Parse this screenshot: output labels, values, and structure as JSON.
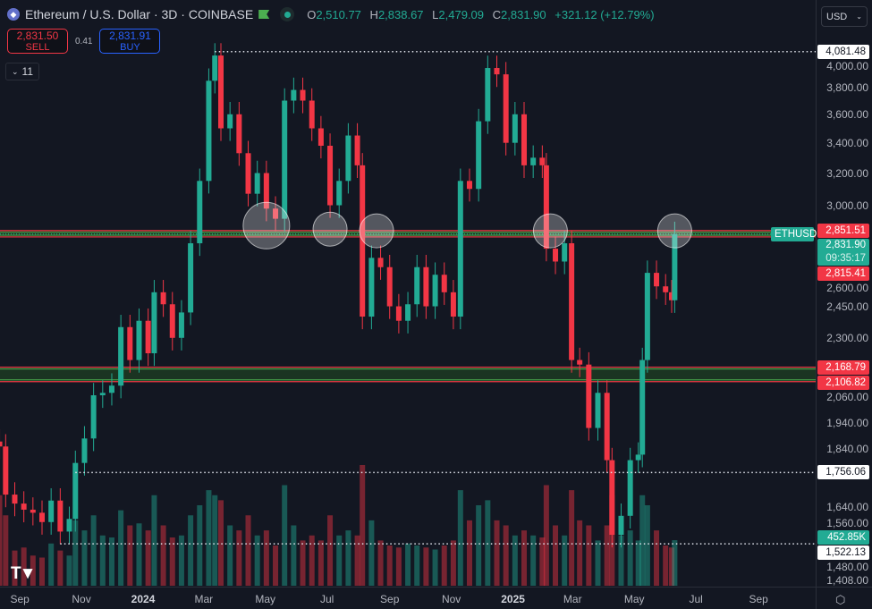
{
  "header": {
    "title": "Ethereum / U.S. Dollar · 3D · COINBASE",
    "open_label": "O",
    "open": "2,510.77",
    "high_label": "H",
    "high": "2,838.67",
    "low_label": "L",
    "low": "2,479.09",
    "close_label": "C",
    "close": "2,831.90",
    "change": "+321.12 (+12.79%)"
  },
  "trade": {
    "sell_price": "2,831.50",
    "sell_label": "SELL",
    "spread": "0.41",
    "buy_price": "2,831.91",
    "buy_label": "BUY"
  },
  "indicators_toggle": {
    "count": "11"
  },
  "currency": {
    "selected": "USD"
  },
  "colors": {
    "background": "#131722",
    "up": "#22ab94",
    "down": "#f23645",
    "zone": "#1d3a22"
  },
  "chart_data": {
    "type": "candlestick",
    "symbol": "ETHUSD",
    "interval": "3D",
    "scale": "log",
    "ylim": [
      1380,
      4150
    ],
    "y_ticks": [
      "4,000.00",
      "3,800.00",
      "3,600.00",
      "3,400.00",
      "3,200.00",
      "3,000.00",
      "2,600.00",
      "2,450.00",
      "2,300.00",
      "2,060.00",
      "1,940.00",
      "1,840.00",
      "1,640.00",
      "1,560.00",
      "1,480.00",
      "1,408.00"
    ],
    "x_ticks": [
      {
        "label": "Sep",
        "date": "2023-09-01"
      },
      {
        "label": "Nov",
        "date": "2023-11-01"
      },
      {
        "label": "2024",
        "date": "2024-01-01",
        "bold": true
      },
      {
        "label": "Mar",
        "date": "2024-03-01"
      },
      {
        "label": "May",
        "date": "2024-05-01"
      },
      {
        "label": "Jul",
        "date": "2024-07-01"
      },
      {
        "label": "Sep",
        "date": "2024-09-01"
      },
      {
        "label": "Nov",
        "date": "2024-11-01"
      },
      {
        "label": "2025",
        "date": "2025-01-01",
        "bold": true
      },
      {
        "label": "Mar",
        "date": "2025-03-01"
      },
      {
        "label": "May",
        "date": "2025-05-01"
      },
      {
        "label": "Jul",
        "date": "2025-07-01"
      },
      {
        "label": "Sep",
        "date": "2025-09-01"
      }
    ],
    "closes": [
      [
        "2023-08-12",
        1850,
        900
      ],
      [
        "2023-08-18",
        1680,
        700
      ],
      [
        "2023-08-27",
        1650,
        350
      ],
      [
        "2023-09-05",
        1630,
        380
      ],
      [
        "2023-09-14",
        1620,
        300
      ],
      [
        "2023-09-23",
        1590,
        280
      ],
      [
        "2023-10-02",
        1660,
        420
      ],
      [
        "2023-10-11",
        1560,
        350
      ],
      [
        "2023-10-20",
        1600,
        300
      ],
      [
        "2023-10-26",
        1790,
        650
      ],
      [
        "2023-11-04",
        1880,
        550
      ],
      [
        "2023-11-13",
        2050,
        700
      ],
      [
        "2023-11-22",
        2060,
        500
      ],
      [
        "2023-12-01",
        2090,
        480
      ],
      [
        "2023-12-10",
        2350,
        750
      ],
      [
        "2023-12-19",
        2200,
        600
      ],
      [
        "2023-12-28",
        2380,
        620
      ],
      [
        "2024-01-06",
        2230,
        550
      ],
      [
        "2024-01-12",
        2520,
        900
      ],
      [
        "2024-01-21",
        2460,
        600
      ],
      [
        "2024-01-30",
        2300,
        480
      ],
      [
        "2024-02-08",
        2420,
        500
      ],
      [
        "2024-02-17",
        2780,
        700
      ],
      [
        "2024-02-26",
        3150,
        800
      ],
      [
        "2024-03-06",
        3850,
        950
      ],
      [
        "2024-03-12",
        4050,
        900
      ],
      [
        "2024-03-18",
        3500,
        850
      ],
      [
        "2024-03-27",
        3600,
        600
      ],
      [
        "2024-04-05",
        3330,
        550
      ],
      [
        "2024-04-14",
        3070,
        700
      ],
      [
        "2024-04-23",
        3200,
        500
      ],
      [
        "2024-05-02",
        2980,
        550
      ],
      [
        "2024-05-11",
        2920,
        400
      ],
      [
        "2024-05-20",
        3700,
        1000
      ],
      [
        "2024-05-29",
        3780,
        600
      ],
      [
        "2024-06-07",
        3700,
        450
      ],
      [
        "2024-06-16",
        3500,
        500
      ],
      [
        "2024-06-25",
        3380,
        450
      ],
      [
        "2024-07-04",
        3000,
        700
      ],
      [
        "2024-07-13",
        3150,
        500
      ],
      [
        "2024-07-22",
        3450,
        550
      ],
      [
        "2024-07-31",
        3250,
        500
      ],
      [
        "2024-08-05",
        2400,
        1200
      ],
      [
        "2024-08-14",
        2700,
        650
      ],
      [
        "2024-08-23",
        2650,
        450
      ],
      [
        "2024-09-01",
        2450,
        400
      ],
      [
        "2024-09-10",
        2380,
        380
      ],
      [
        "2024-09-19",
        2460,
        420
      ],
      [
        "2024-09-28",
        2650,
        400
      ],
      [
        "2024-10-07",
        2450,
        380
      ],
      [
        "2024-10-16",
        2610,
        360
      ],
      [
        "2024-10-25",
        2520,
        400
      ],
      [
        "2024-11-03",
        2400,
        450
      ],
      [
        "2024-11-10",
        3150,
        950
      ],
      [
        "2024-11-19",
        3100,
        650
      ],
      [
        "2024-11-28",
        3550,
        800
      ],
      [
        "2024-12-07",
        3950,
        850
      ],
      [
        "2024-12-16",
        3900,
        650
      ],
      [
        "2024-12-25",
        3400,
        600
      ],
      [
        "2025-01-03",
        3600,
        500
      ],
      [
        "2025-01-12",
        3250,
        550
      ],
      [
        "2025-01-21",
        3300,
        500
      ],
      [
        "2025-01-30",
        3250,
        480
      ],
      [
        "2025-02-03",
        2750,
        1000
      ],
      [
        "2025-02-12",
        2680,
        600
      ],
      [
        "2025-02-21",
        2780,
        500
      ],
      [
        "2025-02-28",
        2200,
        950
      ],
      [
        "2025-03-08",
        2180,
        650
      ],
      [
        "2025-03-17",
        1920,
        600
      ],
      [
        "2025-03-26",
        2060,
        450
      ],
      [
        "2025-04-04",
        1800,
        600
      ],
      [
        "2025-04-09",
        1550,
        900
      ],
      [
        "2025-04-18",
        1610,
        500
      ],
      [
        "2025-04-27",
        1800,
        550
      ],
      [
        "2025-05-05",
        1820,
        450
      ],
      [
        "2025-05-09",
        2200,
        900
      ],
      [
        "2025-05-14",
        2620,
        800
      ],
      [
        "2025-05-23",
        2550,
        550
      ],
      [
        "2025-06-01",
        2520,
        400
      ],
      [
        "2025-06-07",
        2480,
        380
      ],
      [
        "2025-06-10",
        2832,
        453
      ]
    ],
    "volume_last": "452.85K",
    "price_labels": [
      {
        "value": 4081.48,
        "text": "4,081.48",
        "style": "white",
        "line": "dotted",
        "from": "2024-03-12"
      },
      {
        "value": 2851.51,
        "text": "2,851.51",
        "style": "red"
      },
      {
        "value": 2815.41,
        "text": "2,815.41",
        "style": "red"
      },
      {
        "value": 2168.79,
        "text": "2,168.79",
        "style": "red"
      },
      {
        "value": 2106.82,
        "text": "2,106.82",
        "style": "red"
      },
      {
        "value": 1756.06,
        "text": "1,756.06",
        "style": "white",
        "line": "dotted",
        "from": "2023-10-26"
      },
      {
        "value": 1522.13,
        "text": "1,522.13",
        "style": "white",
        "line": "dotted",
        "from": "2023-10-11"
      }
    ],
    "last_price": {
      "symbol": "ETHUSD",
      "price": "2,831.90",
      "countdown": "09:35:17",
      "value": 2831.9
    },
    "zones": [
      {
        "top": 2851.51,
        "bottom": 2815.41
      },
      {
        "top": 2168.79,
        "bottom": 2106.82
      }
    ],
    "circles": [
      {
        "date": "2024-05-02",
        "price": 2880,
        "size": "large"
      },
      {
        "date": "2024-07-04",
        "price": 2860,
        "size": "small"
      },
      {
        "date": "2024-08-19",
        "price": 2850,
        "size": "small"
      },
      {
        "date": "2025-02-07",
        "price": 2850,
        "size": "small"
      },
      {
        "date": "2025-06-10",
        "price": 2850,
        "size": "small"
      }
    ]
  }
}
